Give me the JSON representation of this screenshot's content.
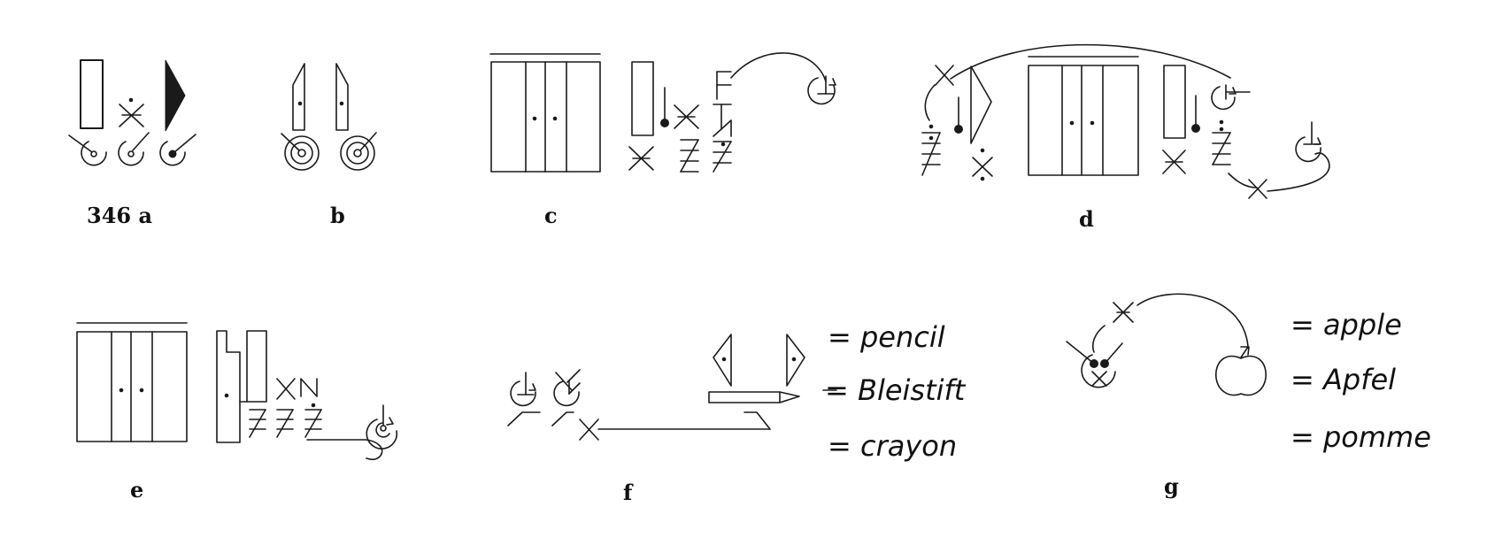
{
  "figure_number": "346",
  "panels": {
    "a": {
      "label": "a"
    },
    "b": {
      "label": "b"
    },
    "c": {
      "label": "c"
    },
    "d": {
      "label": "d"
    },
    "e": {
      "label": "e"
    },
    "f": {
      "label": "f",
      "words": [
        "= pencil",
        "= Bleistift",
        "= crayon"
      ]
    },
    "g": {
      "label": "g",
      "words": [
        "= apple",
        "= Apfel",
        "= pomme"
      ]
    }
  },
  "icons": [
    "door-icon",
    "hinge-icon",
    "movement-circle-icon",
    "pencil-icon",
    "apple-icon",
    "cross-icon"
  ]
}
